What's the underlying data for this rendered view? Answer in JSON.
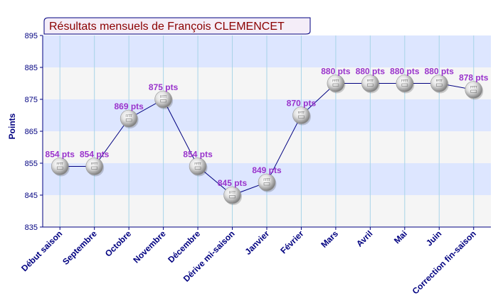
{
  "chart_data": {
    "type": "line",
    "title": "Résultats mensuels de François CLEMENCET",
    "ylabel": "Points",
    "xlabel": "",
    "ylim": [
      835,
      895
    ],
    "yticks": [
      835,
      845,
      855,
      865,
      875,
      885,
      895
    ],
    "categories": [
      "Début saison",
      "Septembre",
      "Octobre",
      "Novembre",
      "Décembre",
      "Dérive mi-saison",
      "Janvier",
      "Février",
      "Mars",
      "Avril",
      "Mai",
      "Juin",
      "Correction fin-saison"
    ],
    "values": [
      854,
      854,
      869,
      875,
      854,
      845,
      849,
      870,
      880,
      880,
      880,
      880,
      878
    ],
    "data_labels": [
      "854 pts",
      "854 pts",
      "869 pts",
      "875 pts",
      "854 pts",
      "845 pts",
      "849 pts",
      "870 pts",
      "880 pts",
      "880 pts",
      "880 pts",
      "880 pts",
      "878 pts"
    ],
    "marker_text": "FFTT",
    "grid": true,
    "legend": "none",
    "colors": {
      "band_blue": "#dde6ff",
      "band_gray": "#f5f5f5",
      "line": "#000080",
      "axis": "#000080",
      "labels": "#9933cc",
      "title": "#8b0000",
      "grid_vertical": "#a8d4e8"
    }
  }
}
